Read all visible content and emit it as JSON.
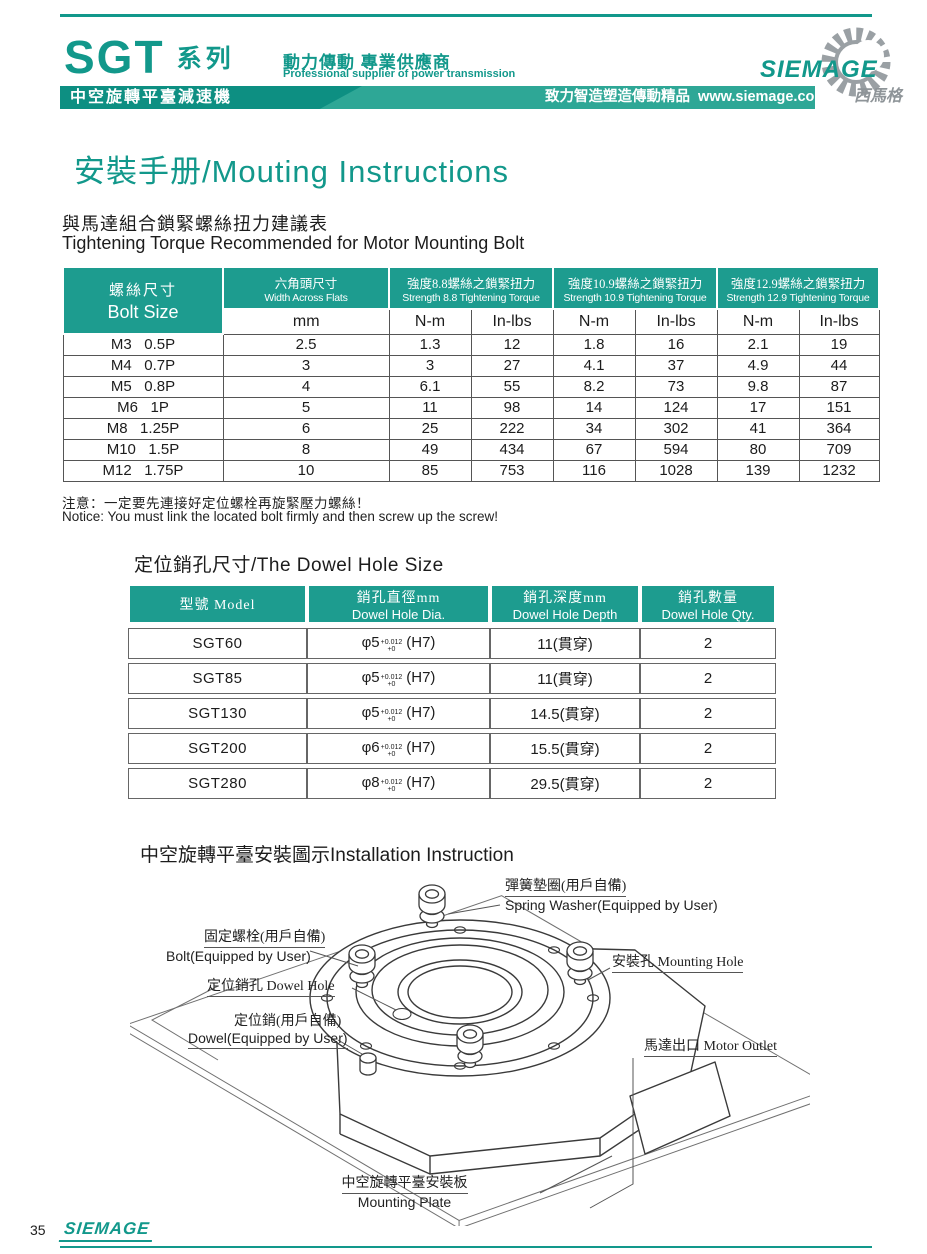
{
  "colors": {
    "accent_teal": "#12988b",
    "banner_dark_teal": "#0d8f82",
    "banner_light_teal": "#2ea796",
    "table_header_teal": "#1d9c8f",
    "logo_gray": "#9aa0a4"
  },
  "header": {
    "series": "SGT",
    "series_suffix": "系列",
    "slogan_cn": "動力傳動 專業供應商",
    "slogan_en": "Professional supplier of power transmission",
    "product_line": "中空旋轉平臺減速機",
    "banner_text": "致力智造塑造傳動精品  www.siemage.com",
    "logo_word": "SIEMAGE",
    "logo_cn": "西馬格"
  },
  "page": {
    "title": "安裝手册/Mouting Instructions",
    "footer_page_number": "35",
    "footer_logo": "SIEMAGE"
  },
  "torque_section": {
    "title_cn": "與馬達組合鎖緊螺絲扭力建議表",
    "title_en": "Tightening Torque Recommended for Motor Mounting Bolt",
    "notice_cn": "注意：一定要先連接好定位螺栓再旋緊壓力螺絲！",
    "notice_en": "Notice: You must link the located bolt firmly and then screw up the screw!",
    "table": {
      "col_bolt_cn": "螺絲尺寸",
      "col_bolt_en": "Bolt Size",
      "col_waf_cn": "六角頭尺寸",
      "col_waf_en": "Width Across Flats",
      "waf_unit": "mm",
      "unit_nm": "N-m",
      "unit_inlbs": "In-lbs",
      "groups": [
        {
          "cn": "強度8.8螺絲之鎖緊扭力",
          "en": "Strength 8.8 Tightening Torque"
        },
        {
          "cn": "強度10.9螺絲之鎖緊扭力",
          "en": "Strength 10.9 Tightening Torque"
        },
        {
          "cn": "強度12.9螺絲之鎖緊扭力",
          "en": "Strength 12.9 Tightening Torque"
        }
      ],
      "rows": [
        {
          "bolt": "M3   0.5P",
          "waf": "2.5",
          "values": [
            "1.3",
            "12",
            "1.8",
            "16",
            "2.1",
            "19"
          ]
        },
        {
          "bolt": "M4   0.7P",
          "waf": "3",
          "values": [
            "3",
            "27",
            "4.1",
            "37",
            "4.9",
            "44"
          ]
        },
        {
          "bolt": "M5   0.8P",
          "waf": "4",
          "values": [
            "6.1",
            "55",
            "8.2",
            "73",
            "9.8",
            "87"
          ]
        },
        {
          "bolt": "M6   1P",
          "waf": "5",
          "values": [
            "11",
            "98",
            "14",
            "124",
            "17",
            "151"
          ]
        },
        {
          "bolt": "M8   1.25P",
          "waf": "6",
          "values": [
            "25",
            "222",
            "34",
            "302",
            "41",
            "364"
          ]
        },
        {
          "bolt": "M10   1.5P",
          "waf": "8",
          "values": [
            "49",
            "434",
            "67",
            "594",
            "80",
            "709"
          ]
        },
        {
          "bolt": "M12   1.75P",
          "waf": "10",
          "values": [
            "85",
            "753",
            "116",
            "1028",
            "139",
            "1232"
          ]
        }
      ]
    }
  },
  "dowel_section": {
    "title": "定位銷孔尺寸/The Dowel Hole Size",
    "table": {
      "col_model": "型號 Model",
      "col_dia_cn": "銷孔直徑mm",
      "col_dia_en": "Dowel Hole Dia.",
      "col_depth_cn": "銷孔深度mm",
      "col_depth_en": "Dowel Hole Depth",
      "col_qty_cn": "銷孔數量",
      "col_qty_en": "Dowel Hole Qty.",
      "rows": [
        {
          "model": "SGT60",
          "dia_base": "φ5",
          "tol_sup": "+0.012",
          "tol_sub": "+0",
          "fit": "(H7)",
          "depth": "11(貫穿)",
          "qty": "2"
        },
        {
          "model": "SGT85",
          "dia_base": "φ5",
          "tol_sup": "+0.012",
          "tol_sub": "+0",
          "fit": "(H7)",
          "depth": "11(貫穿)",
          "qty": "2"
        },
        {
          "model": "SGT130",
          "dia_base": "φ5",
          "tol_sup": "+0.012",
          "tol_sub": "+0",
          "fit": "(H7)",
          "depth": "14.5(貫穿)",
          "qty": "2"
        },
        {
          "model": "SGT200",
          "dia_base": "φ6",
          "tol_sup": "+0.012",
          "tol_sub": "+0",
          "fit": "(H7)",
          "depth": "15.5(貫穿)",
          "qty": "2"
        },
        {
          "model": "SGT280",
          "dia_base": "φ8",
          "tol_sup": "+0.012",
          "tol_sub": "+0",
          "fit": "(H7)",
          "depth": "29.5(貫穿)",
          "qty": "2"
        }
      ]
    }
  },
  "installation_section": {
    "title": "中空旋轉平臺安裝圖示Installation Instruction",
    "labels": {
      "spring_washer_cn": "彈簧墊圈(用戶自備)",
      "spring_washer_en": "Spring Washer(Equipped by User)",
      "bolt_cn": "固定螺栓(用戶自備)",
      "bolt_en": "Bolt(Equipped by User)",
      "dowel_hole": "定位銷孔 Dowel Hole",
      "mounting_hole": "安裝孔 Mounting Hole",
      "dowel_cn": "定位銷(用戶自備)",
      "dowel_en": "Dowel(Equipped by User)",
      "motor_outlet": "馬達出口 Motor Outlet",
      "mounting_plate_cn": "中空旋轉平臺安裝板",
      "mounting_plate_en": "Mounting Plate"
    }
  }
}
